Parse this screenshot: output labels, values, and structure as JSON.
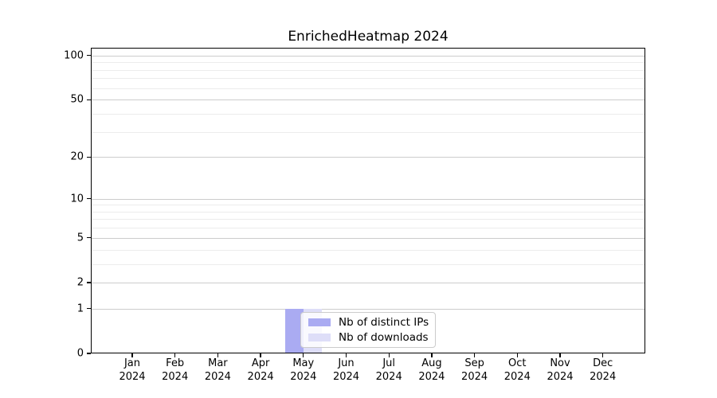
{
  "title": "EnrichedHeatmap 2024",
  "colors": {
    "distinct_ips_bar": "#aaabf2",
    "downloads_bar": "#dedef8",
    "grid_major": "#cccccc",
    "grid_minor": "#ececec",
    "axis_spine": "#000000",
    "legend_border": "#cccccc",
    "legend_background": "#ffffff",
    "text": "#000000",
    "background": "#ffffff"
  },
  "chart_data": {
    "type": "bar",
    "title": "EnrichedHeatmap 2024",
    "xlabel": "",
    "ylabel": "",
    "categories": [
      "Jan 2024",
      "Feb 2024",
      "Mar 2024",
      "Apr 2024",
      "May 2024",
      "Jun 2024",
      "Jul 2024",
      "Aug 2024",
      "Sep 2024",
      "Oct 2024",
      "Nov 2024",
      "Dec 2024"
    ],
    "series": [
      {
        "name": "Nb of distinct IPs",
        "color": "#aaabf2",
        "values": [
          0,
          0,
          0,
          0,
          1,
          0,
          0,
          0,
          0,
          0,
          0,
          0
        ]
      },
      {
        "name": "Nb of downloads",
        "color": "#dedef8",
        "values": [
          0,
          0,
          0,
          0,
          1,
          0,
          0,
          0,
          0,
          0,
          0,
          0
        ]
      }
    ],
    "yscale": "log1p",
    "ylim": [
      0,
      113
    ],
    "y_major_ticks": [
      0,
      1,
      2,
      5,
      10,
      20,
      50,
      100
    ],
    "y_minor_ticks": [
      3,
      4,
      6,
      7,
      8,
      9,
      30,
      40,
      60,
      70,
      80,
      90
    ],
    "grid": true,
    "legend_position": "lower center"
  }
}
